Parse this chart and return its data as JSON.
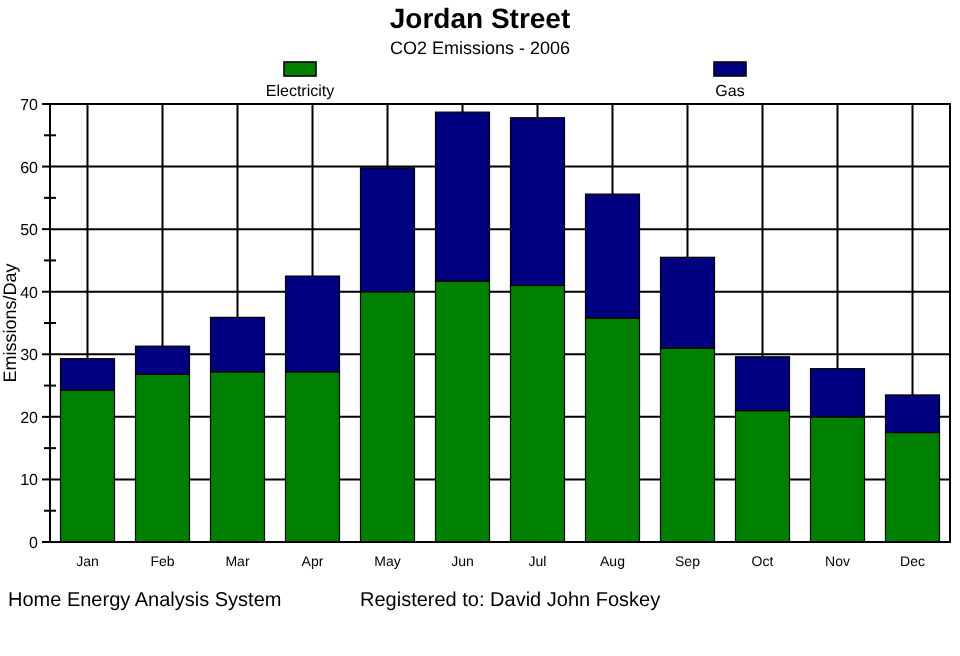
{
  "chart_data": {
    "type": "bar",
    "title": "Jordan Street",
    "subtitle": "CO2 Emissions - 2006",
    "ylabel": "Emissions/Day",
    "categories": [
      "Jan",
      "Feb",
      "Mar",
      "Apr",
      "May",
      "Jun",
      "Jul",
      "Aug",
      "Sep",
      "Oct",
      "Nov",
      "Dec"
    ],
    "stacked": true,
    "series": [
      {
        "name": "Electricity",
        "color": "#008000",
        "values": [
          24.3,
          26.8,
          27.2,
          27.2,
          40,
          41.7,
          41,
          35.8,
          31,
          21,
          20,
          17.5
        ]
      },
      {
        "name": "Gas",
        "color": "#000080",
        "values": [
          5,
          4.5,
          8.7,
          15.3,
          19.8,
          27,
          26.8,
          19.8,
          14.5,
          8.6,
          7.7,
          6
        ]
      }
    ],
    "ylim": [
      0,
      70
    ],
    "yticks": [
      0,
      10,
      20,
      30,
      40,
      50,
      60,
      70
    ],
    "grid": true,
    "legend": "top",
    "annotations": [
      "Home Energy Analysis System",
      "Registered to: David John Foskey"
    ]
  }
}
